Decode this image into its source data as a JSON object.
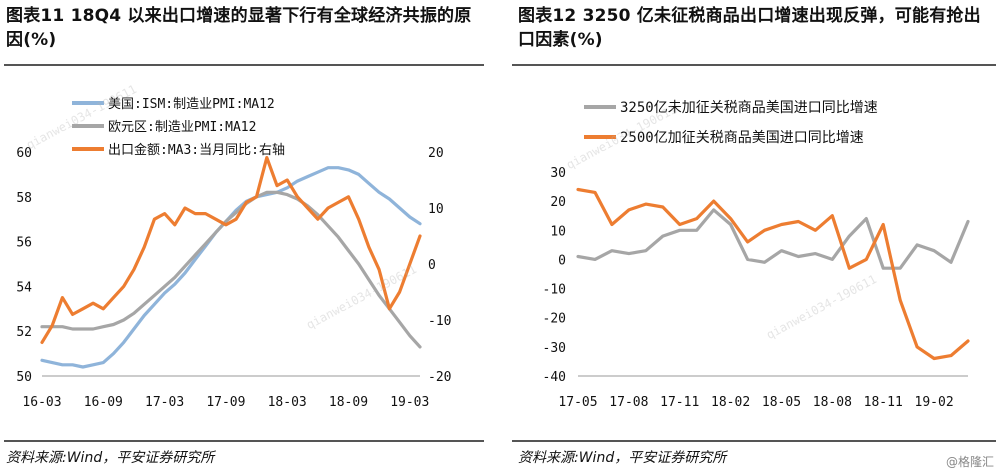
{
  "left": {
    "title": "图表11    18Q4 以来出口增速的显著下行有全球经济共振的原因(%)",
    "source": "资料来源:Wind，平安证券研究所"
  },
  "right": {
    "title": "图表12    3250 亿未征税商品出口增速出现反弹，可能有抢出口因素(%)",
    "source": "资料来源:Wind，平安证券研究所"
  },
  "watermark": "qianwei034-190611",
  "credit": "@格隆汇",
  "chart_data": [
    {
      "type": "line",
      "categories": [
        "16-03",
        "16-04",
        "16-05",
        "16-06",
        "16-07",
        "16-08",
        "16-09",
        "16-10",
        "16-11",
        "16-12",
        "17-01",
        "17-02",
        "17-03",
        "17-04",
        "17-05",
        "17-06",
        "17-07",
        "17-08",
        "17-09",
        "17-10",
        "17-11",
        "17-12",
        "18-01",
        "18-02",
        "18-03",
        "18-04",
        "18-05",
        "18-06",
        "18-07",
        "18-08",
        "18-09",
        "18-10",
        "18-11",
        "18-12",
        "19-01",
        "19-02",
        "19-03",
        "19-04"
      ],
      "x_tick_labels": [
        "16-03",
        "16-09",
        "17-03",
        "17-09",
        "18-03",
        "18-09",
        "19-03"
      ],
      "left_axis": {
        "ylim": [
          50,
          60
        ],
        "ticks": [
          50,
          52,
          54,
          56,
          58,
          60
        ]
      },
      "right_axis": {
        "ylim": [
          -20,
          20
        ],
        "ticks": [
          -20,
          -10,
          0,
          10,
          20
        ]
      },
      "series": [
        {
          "name": "美国:ISM:制造业PMI:MA12",
          "axis": "left",
          "color": "#8fb4da",
          "values": [
            50.7,
            50.6,
            50.5,
            50.5,
            50.4,
            50.5,
            50.6,
            51.0,
            51.5,
            52.1,
            52.7,
            53.2,
            53.7,
            54.1,
            54.6,
            55.2,
            55.8,
            56.4,
            56.9,
            57.4,
            57.8,
            58.0,
            58.1,
            58.2,
            58.4,
            58.7,
            58.9,
            59.1,
            59.3,
            59.3,
            59.2,
            59.0,
            58.6,
            58.2,
            57.9,
            57.5,
            57.1,
            56.8
          ]
        },
        {
          "name": "欧元区:制造业PMI:MA12",
          "axis": "left",
          "color": "#a6a6a6",
          "values": [
            52.2,
            52.2,
            52.2,
            52.1,
            52.1,
            52.1,
            52.2,
            52.3,
            52.5,
            52.8,
            53.2,
            53.6,
            54.0,
            54.4,
            54.9,
            55.4,
            55.9,
            56.4,
            56.9,
            57.3,
            57.7,
            58.0,
            58.2,
            58.2,
            58.1,
            57.9,
            57.6,
            57.2,
            56.7,
            56.2,
            55.6,
            55.0,
            54.3,
            53.6,
            53.0,
            52.4,
            51.8,
            51.3
          ]
        },
        {
          "name": "出口金额:MA3:当月同比:右轴",
          "axis": "right",
          "color": "#ed7d31",
          "values": [
            -14,
            -11,
            -6,
            -9,
            -8,
            -7,
            -8,
            -6,
            -4,
            -1,
            3,
            8,
            9,
            7,
            10,
            9,
            9,
            8,
            7,
            8,
            11,
            12,
            19,
            14,
            15,
            12,
            10,
            8,
            10,
            11,
            12,
            8,
            3,
            -1,
            -8,
            -5,
            0,
            5
          ]
        }
      ]
    },
    {
      "type": "line",
      "categories": [
        "17-05",
        "17-06",
        "17-07",
        "17-08",
        "17-09",
        "17-10",
        "17-11",
        "17-12",
        "18-01",
        "18-02",
        "18-03",
        "18-04",
        "18-05",
        "18-06",
        "18-07",
        "18-08",
        "18-09",
        "18-10",
        "18-11",
        "18-12",
        "19-01",
        "19-02",
        "19-03",
        "19-04"
      ],
      "x_tick_labels": [
        "17-05",
        "17-08",
        "17-11",
        "18-02",
        "18-05",
        "18-08",
        "18-11",
        "19-02"
      ],
      "ylim": [
        -40,
        30
      ],
      "y_ticks": [
        -40,
        -30,
        -20,
        -10,
        0,
        10,
        20,
        30
      ],
      "series": [
        {
          "name": "3250亿未加征关税商品美国进口同比增速",
          "color": "#a6a6a6",
          "values": [
            1,
            0,
            3,
            2,
            3,
            8,
            10,
            10,
            17,
            12,
            0,
            -1,
            3,
            1,
            2,
            0,
            8,
            14,
            -3,
            -3,
            5,
            3,
            -1,
            13
          ]
        },
        {
          "name": "2500亿加征关税商品美国进口同比增速",
          "color": "#ed7d31",
          "values": [
            24,
            23,
            12,
            17,
            19,
            18,
            12,
            14,
            20,
            14,
            6,
            10,
            12,
            13,
            10,
            15,
            -3,
            0,
            12,
            -14,
            -30,
            -34,
            -33,
            -28
          ]
        }
      ]
    }
  ]
}
